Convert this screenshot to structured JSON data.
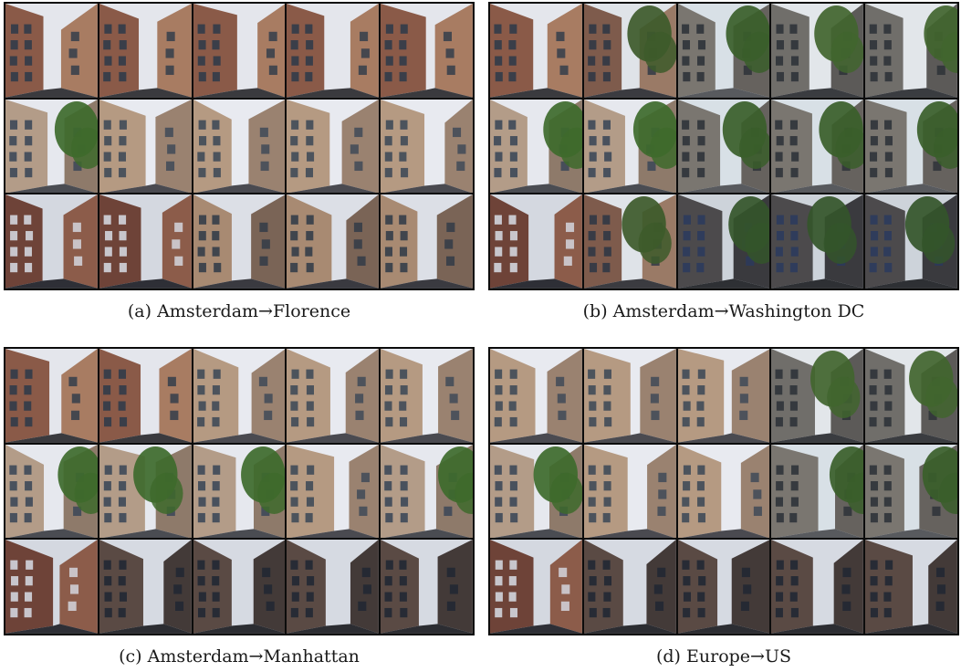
{
  "panels": [
    {
      "caption": "(a) Amsterdam→Florence",
      "rows": [
        [
          "brick-sky",
          "brick-sky",
          "brick-sky",
          "brick-sky",
          "brick-sky"
        ],
        [
          "facade-tree",
          "facade-sky",
          "facade-sky",
          "facade-sky",
          "facade-sky"
        ],
        [
          "brick-street",
          "brick-street",
          "facade-street",
          "facade-street",
          "facade-street"
        ]
      ]
    },
    {
      "caption": "(b) Amsterdam→Washington DC",
      "rows": [
        [
          "brick-sky",
          "brick-tree",
          "tree-street",
          "tree-sky",
          "tree-sky"
        ],
        [
          "facade-tree",
          "facade-tree",
          "tree-street",
          "tree-street",
          "tree-street"
        ],
        [
          "brick-street",
          "brick-tree",
          "dark-tree",
          "dark-tree",
          "dark-tree"
        ]
      ]
    },
    {
      "caption": "(c) Amsterdam→Manhattan",
      "rows": [
        [
          "brick-sky",
          "brick-sky",
          "facade-sky",
          "facade-sky",
          "facade-sky"
        ],
        [
          "facade-tree",
          "facade-tree",
          "facade-tree",
          "facade-sky",
          "facade-tree"
        ],
        [
          "brick-street",
          "dark-facade",
          "dark-facade",
          "dark-facade",
          "dark-facade"
        ]
      ]
    },
    {
      "caption": "(d) Europe→US",
      "rows": [
        [
          "facade-sky",
          "facade-sky",
          "facade-sky",
          "tree-sky",
          "tree-sky"
        ],
        [
          "facade-tree",
          "facade-sky",
          "facade-sky",
          "tree-street",
          "tree-street"
        ],
        [
          "brick-street",
          "dark-facade",
          "dark-facade",
          "dark-facade",
          "dark-facade"
        ]
      ]
    }
  ]
}
